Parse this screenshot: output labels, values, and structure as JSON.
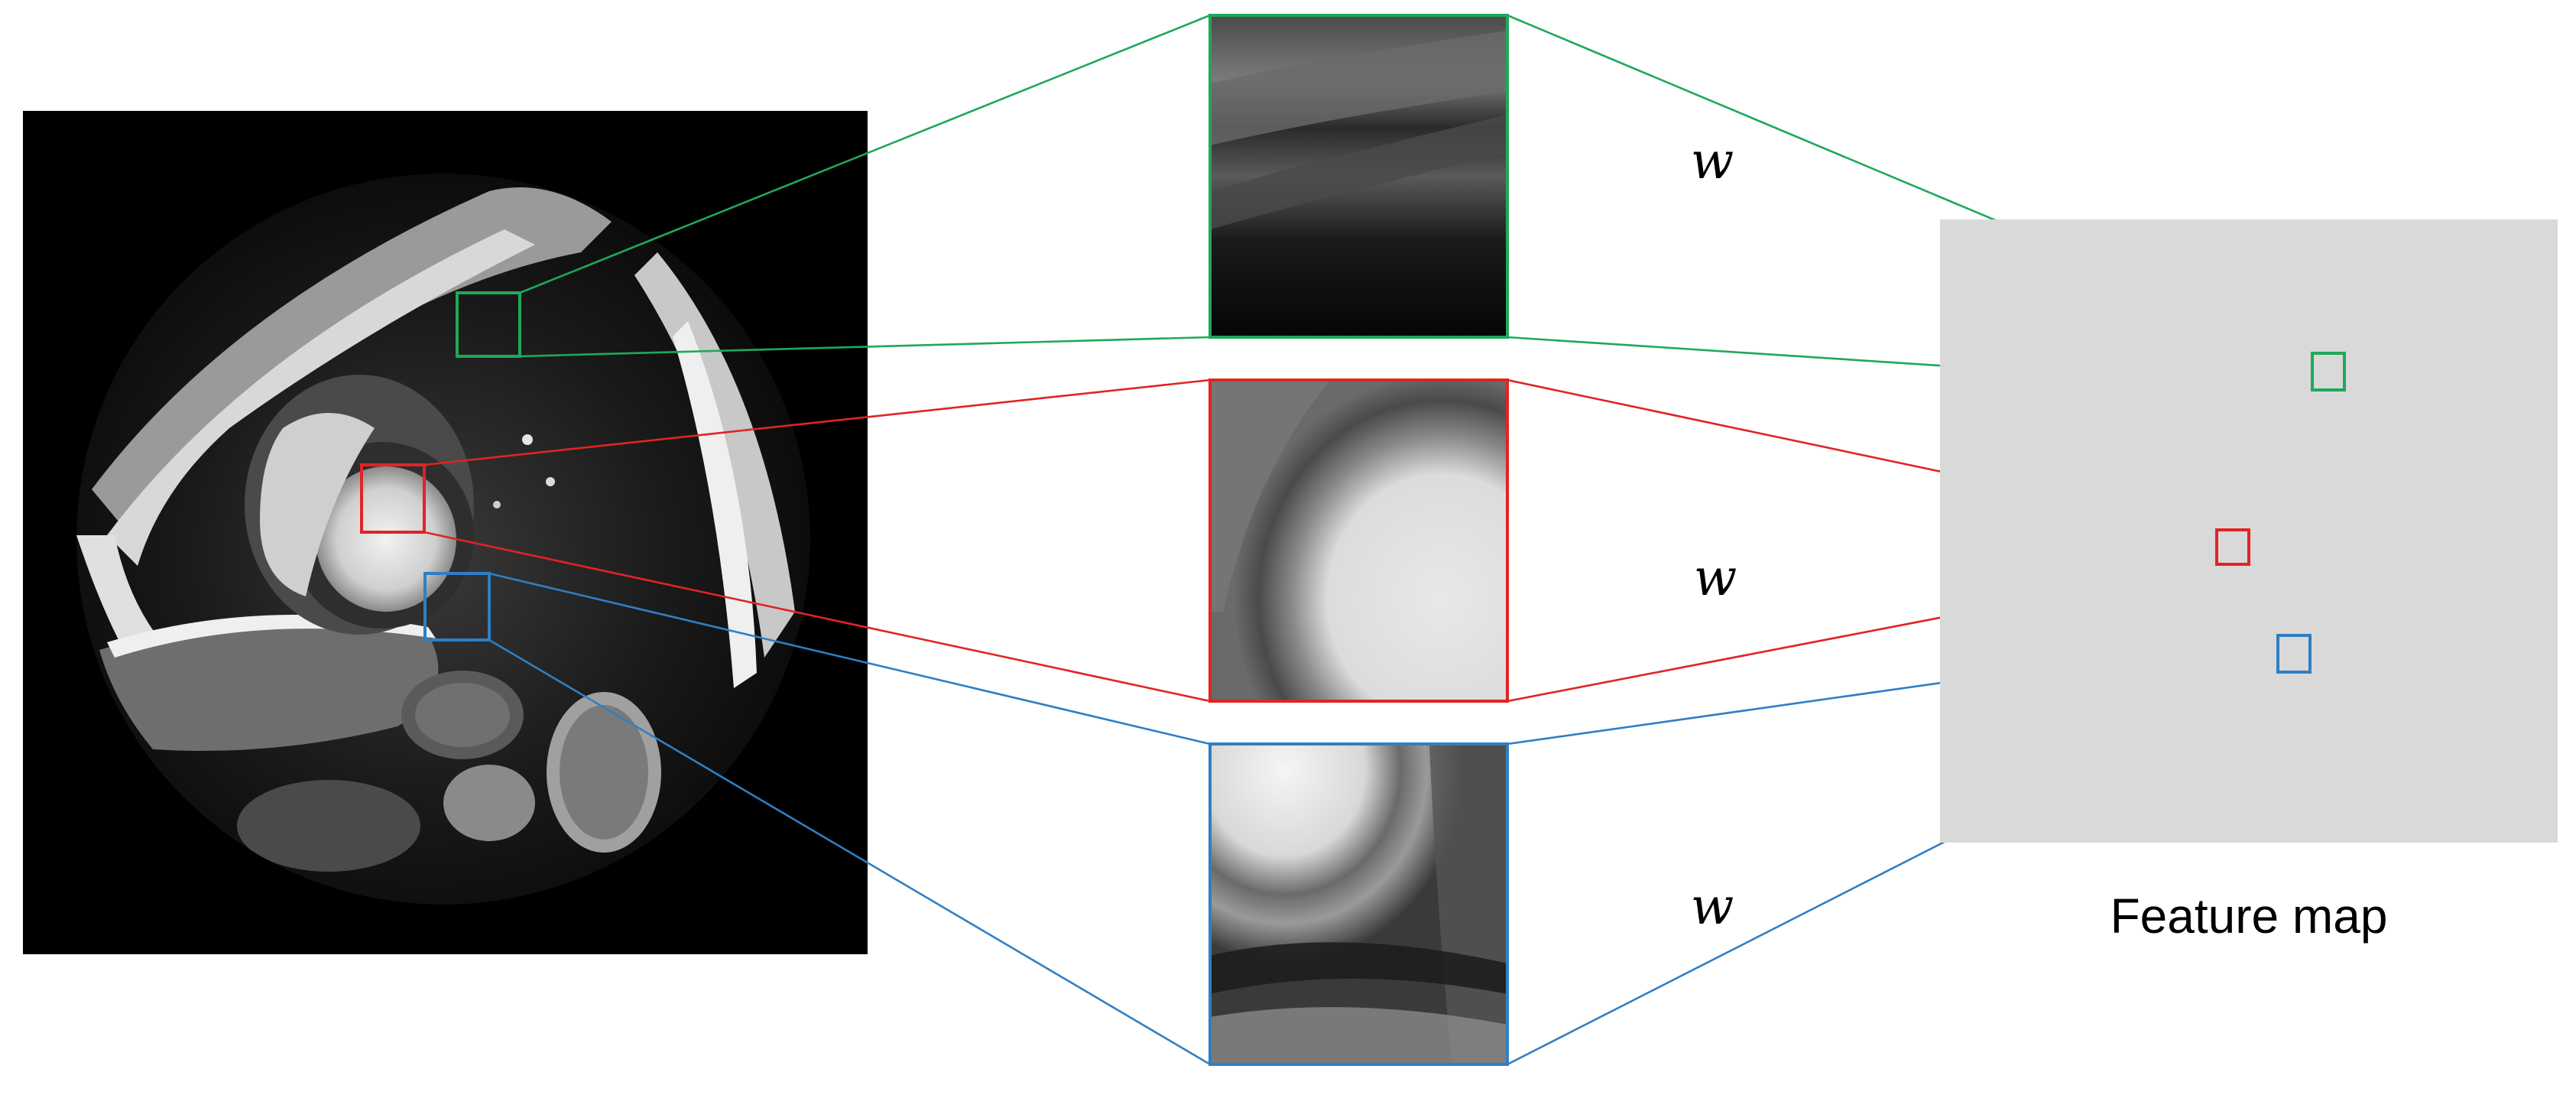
{
  "diagram": {
    "weight_symbols": [
      "w",
      "w",
      "w"
    ],
    "feature_map_label": "Feature map",
    "colors": {
      "green": "#1fa85a",
      "red": "#e02424",
      "blue": "#2f7fc4",
      "feature_map_fill": "#d9d9d9",
      "image_background": "#000000"
    },
    "icons": {
      "mri": "cardiac-mri-short-axis-image",
      "patches": "zoomed-image-patch",
      "feature_cell": "feature-map-cell"
    }
  }
}
